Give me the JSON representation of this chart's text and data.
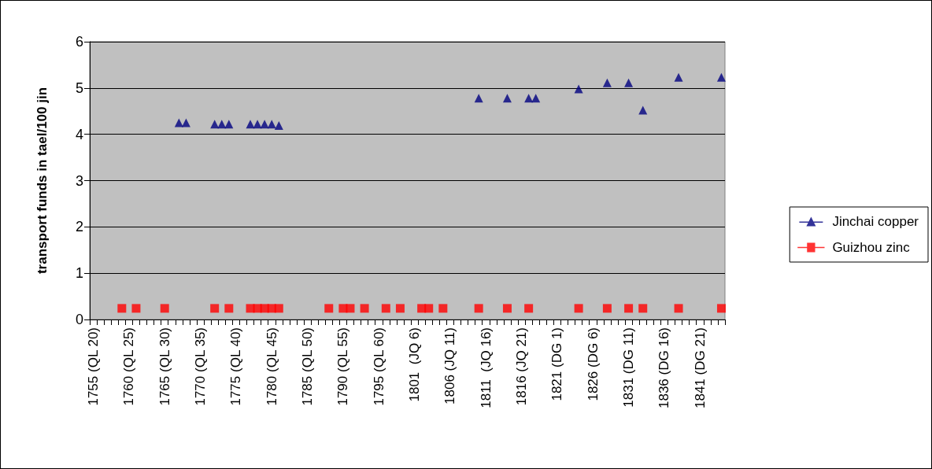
{
  "chart_data": {
    "type": "scatter",
    "ylabel": "transport funds in tael/100 jin",
    "categories": [
      "1755 (QL 20)",
      null,
      null,
      null,
      null,
      "1760 (QL 25)",
      null,
      null,
      null,
      null,
      "1765 (QL 30)",
      null,
      null,
      null,
      null,
      "1770 (QL 35)",
      null,
      null,
      null,
      null,
      "1775 (QL 40)",
      null,
      null,
      null,
      null,
      "1780 (QL 45)",
      null,
      null,
      null,
      null,
      "1785 (QL 50)",
      null,
      null,
      null,
      null,
      "1790 (QL 55)",
      null,
      null,
      null,
      null,
      "1795 (QL 60)",
      null,
      null,
      null,
      null,
      "1801  (JQ 6)",
      null,
      null,
      null,
      null,
      "1806 (JQ 11)",
      null,
      null,
      null,
      null,
      "1811  (JQ 16)",
      null,
      null,
      null,
      null,
      "1816 (JQ 21)",
      null,
      null,
      null,
      null,
      "1821 (DG 1)",
      null,
      null,
      null,
      null,
      "1826 (DG 6)",
      null,
      null,
      null,
      null,
      "1831 (DG 11)",
      null,
      null,
      null,
      null,
      "1836 (DG 16)",
      null,
      null,
      null,
      null,
      "1841 (DG 21)",
      null,
      null,
      null
    ],
    "series": [
      {
        "name": "Jinchai copper",
        "color": "#000080",
        "marker": "triangle",
        "values": [
          null,
          null,
          null,
          null,
          null,
          null,
          null,
          null,
          null,
          null,
          null,
          null,
          4.25,
          4.25,
          null,
          null,
          null,
          4.22,
          4.22,
          4.22,
          null,
          null,
          4.22,
          4.22,
          4.22,
          4.22,
          4.19,
          null,
          null,
          null,
          null,
          null,
          null,
          null,
          null,
          null,
          null,
          null,
          null,
          null,
          null,
          null,
          null,
          null,
          null,
          null,
          null,
          null,
          null,
          null,
          null,
          null,
          null,
          null,
          4.78,
          null,
          null,
          null,
          4.78,
          null,
          null,
          4.78,
          4.78,
          null,
          null,
          null,
          null,
          null,
          4.98,
          null,
          null,
          null,
          5.11,
          null,
          null,
          5.11,
          null,
          4.52,
          null,
          null,
          null,
          null,
          5.23,
          null,
          null,
          null,
          null,
          null,
          5.23
        ]
      },
      {
        "name": "Guizhou zinc",
        "color": "#ff0000",
        "marker": "square",
        "values": [
          null,
          null,
          null,
          null,
          0.24,
          null,
          0.24,
          null,
          null,
          null,
          0.24,
          null,
          null,
          null,
          null,
          null,
          null,
          0.24,
          null,
          0.24,
          null,
          null,
          0.24,
          0.24,
          0.24,
          0.24,
          0.24,
          null,
          null,
          null,
          null,
          null,
          null,
          0.24,
          null,
          0.24,
          0.24,
          null,
          0.24,
          null,
          null,
          0.24,
          null,
          0.24,
          null,
          null,
          0.24,
          0.24,
          null,
          0.24,
          null,
          null,
          null,
          null,
          0.24,
          null,
          null,
          null,
          0.24,
          null,
          null,
          0.24,
          null,
          null,
          null,
          null,
          null,
          null,
          0.24,
          null,
          null,
          null,
          0.24,
          null,
          null,
          0.24,
          null,
          0.24,
          null,
          null,
          null,
          null,
          0.24,
          null,
          null,
          null,
          null,
          null,
          0.24
        ]
      }
    ],
    "ylim": [
      0,
      6
    ],
    "yticks": [
      0,
      1,
      2,
      3,
      4,
      5,
      6
    ],
    "grid": "y",
    "legend": "right"
  }
}
